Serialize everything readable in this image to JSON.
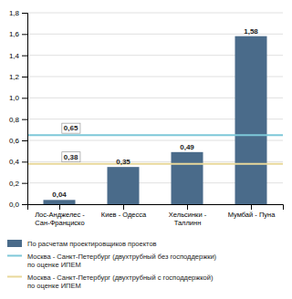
{
  "chart_data": {
    "type": "bar",
    "categories": [
      "Лос-Анджелес -\nСан-Франциско",
      "Киев - Одесса",
      "Хельсинки -\nТаллинн",
      "Мумбай - Пуна"
    ],
    "series": [
      {
        "name": "По расчетам проектировщиков проектов",
        "type": "bar",
        "color": "#4a6b8a",
        "values": [
          0.04,
          0.35,
          0.49,
          1.58
        ],
        "value_labels": [
          "0,04",
          "0,35",
          "0,49",
          "1,58"
        ]
      },
      {
        "name": "Москва - Санкт-Петербург (двухтрубный без господдержки)\nпо оценке ИПЕМ",
        "type": "hline",
        "color": "#7ec8d8",
        "value": 0.65,
        "value_label": "0,65"
      },
      {
        "name": "Москва - Санкт-Петербург (двухтрубный с господдержкой)\nпо оценке ИПЕМ",
        "type": "hline",
        "color": "#e8d89a",
        "value": 0.38,
        "value_label": "0,38"
      }
    ],
    "ylim": [
      0,
      1.8
    ],
    "yticks": [
      {
        "value": 0.0,
        "label": "0,0"
      },
      {
        "value": 0.2,
        "label": "0,2"
      },
      {
        "value": 0.4,
        "label": "0,4"
      },
      {
        "value": 0.6,
        "label": "0,6"
      },
      {
        "value": 0.8,
        "label": "0,8"
      },
      {
        "value": 1.0,
        "label": "1,0"
      },
      {
        "value": 1.2,
        "label": "1,2"
      },
      {
        "value": 1.4,
        "label": "1,4"
      },
      {
        "value": 1.6,
        "label": "1,6"
      },
      {
        "value": 1.8,
        "label": "1,8"
      }
    ],
    "grid": true,
    "data_labels": true,
    "legend": "bottom"
  }
}
